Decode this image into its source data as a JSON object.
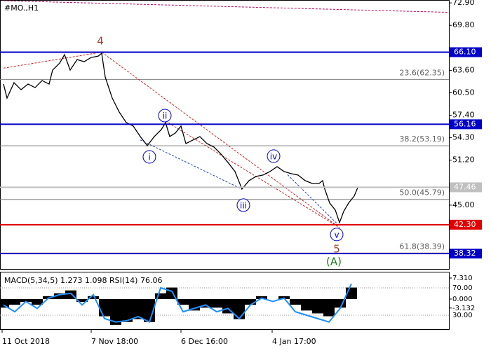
{
  "chart_data": [
    {
      "type": "line",
      "title": "#MO.,H1",
      "color": "#000000",
      "x": [
        5,
        10,
        20,
        30,
        40,
        50,
        60,
        70,
        75,
        85,
        92,
        100,
        110,
        120,
        130,
        140,
        145,
        150,
        160,
        170,
        180,
        190,
        200,
        210,
        220,
        230,
        236,
        242,
        250,
        258,
        265,
        275,
        285,
        295,
        305,
        315,
        325,
        335,
        345,
        355,
        365,
        375,
        385,
        395,
        405,
        415,
        425,
        435,
        445,
        455,
        460,
        463,
        470,
        478,
        484,
        490,
        497,
        505,
        510
      ],
      "values": [
        61.7,
        59.77,
        61.9,
        60.93,
        61.7,
        61.22,
        62.19,
        61.7,
        63.63,
        64.6,
        65.76,
        63.63,
        65.08,
        64.79,
        65.37,
        65.56,
        65.95,
        62.67,
        59.77,
        57.84,
        56.39,
        55.91,
        54.46,
        53.21,
        54.46,
        55.43,
        56.39,
        54.46,
        54.95,
        55.91,
        53.5,
        53.98,
        54.46,
        53.5,
        53.02,
        52.05,
        50.89,
        49.64,
        47.22,
        48.38,
        48.96,
        49.15,
        49.64,
        50.31,
        49.64,
        49.35,
        49.15,
        48.38,
        48.0,
        48.0,
        48.38,
        47.22,
        45.29,
        44.33,
        42.59,
        44.14,
        45.29,
        46.26,
        47.42
      ],
      "xlim": [
        0,
        640
      ],
      "xticks": [
        {
          "value": 3,
          "label": "11 Oct 2018"
        },
        {
          "value": 130,
          "label": "7 Nov 18:00"
        },
        {
          "value": 258,
          "label": "6 Dec 16:00"
        },
        {
          "value": 388,
          "label": "4 Jan 17:00"
        }
      ],
      "ylim": [
        36.1,
        73.3
      ],
      "yticks": [
        {
          "value": 72.9,
          "label": "72.90"
        },
        {
          "value": 69.8,
          "label": "69.80"
        },
        {
          "value": 63.6,
          "label": "63.60"
        },
        {
          "value": 60.5,
          "label": "60.50"
        },
        {
          "value": 57.4,
          "label": "57.40"
        },
        {
          "value": 54.3,
          "label": "54.30"
        },
        {
          "value": 51.2,
          "label": "51.20"
        },
        {
          "value": 45,
          "label": "45.00"
        }
      ],
      "levels": [
        {
          "value": 66.1,
          "label": "66.10",
          "color": "#0000c8"
        },
        {
          "value": 56.16,
          "label": "56.16",
          "color": "#0000c8"
        },
        {
          "value": 47.46,
          "label": "47.46",
          "color": "#c0c0c0"
        },
        {
          "value": 42.3,
          "label": "42.30",
          "color": "#e00000"
        },
        {
          "value": 38.32,
          "label": "38.32",
          "color": "#0000c8"
        }
      ],
      "fib_levels": [
        {
          "value": 62.35,
          "label": "23.6(62.35)"
        },
        {
          "value": 53.19,
          "label": "38.2(53.19)"
        },
        {
          "value": 45.79,
          "label": "50.0(45.79)"
        },
        {
          "value": 38.39,
          "label": "61.8(38.39)"
        }
      ],
      "annotations": [
        {
          "text": "4",
          "x": 143,
          "y": 67.69,
          "color": "#a0402a",
          "circled": false
        },
        {
          "text": "i",
          "x": 213,
          "y": 51.66,
          "color": "#0000c8",
          "circled": true
        },
        {
          "text": "ii",
          "x": 235,
          "y": 57.36,
          "color": "#0000c8",
          "circled": true
        },
        {
          "text": "iii",
          "x": 347,
          "y": 45.0,
          "color": "#0000c8",
          "circled": true
        },
        {
          "text": "iv",
          "x": 390,
          "y": 51.76,
          "color": "#0000c8",
          "circled": true
        },
        {
          "text": "v",
          "x": 480,
          "y": 40.95,
          "color": "#0000c8",
          "circled": true
        },
        {
          "text": "5",
          "x": 480,
          "y": 39.02,
          "color": "#a0402a",
          "circled": false
        },
        {
          "text": "(A)",
          "x": 476,
          "y": 37.28,
          "color": "#1a7a1a",
          "circled": false
        }
      ],
      "trendlines": [
        {
          "x1": 5,
          "y1": 73.2,
          "x2": 640,
          "y2": 71.6,
          "color": "#c00060"
        },
        {
          "x1": 5,
          "y1": 63.9,
          "x2": 145,
          "y2": 66.1,
          "color": "#d02020"
        },
        {
          "x1": 145,
          "y1": 66.1,
          "x2": 484,
          "y2": 41.9,
          "color": "#d02020"
        },
        {
          "x1": 236,
          "y1": 56.6,
          "x2": 484,
          "y2": 41.9,
          "color": "#d02020"
        },
        {
          "x1": 200,
          "y1": 54.0,
          "x2": 345,
          "y2": 47.2,
          "color": "#2040d0"
        },
        {
          "x1": 410,
          "y1": 49.2,
          "x2": 480,
          "y2": 42.5,
          "color": "#2040d0"
        }
      ]
    },
    {
      "type": "macd",
      "title": "MACD(5,34,5) 1.273 1.098 RSI(14) 76.06",
      "x": [
        5,
        21,
        37,
        53,
        69,
        85,
        101,
        117,
        133,
        149,
        165,
        181,
        197,
        213,
        229,
        245,
        261,
        277,
        293,
        309,
        325,
        341,
        357,
        373,
        389,
        405,
        421,
        437,
        453,
        469,
        485,
        501
      ],
      "hist": [
        -3,
        -2,
        -1,
        -2,
        1,
        2,
        3,
        -1,
        1,
        -6,
        -9,
        -8,
        -7,
        -8,
        2,
        4,
        -2,
        -4,
        -3,
        -3,
        -5,
        -7,
        -2,
        1,
        0,
        1,
        -2,
        -4,
        -5,
        -6,
        -3,
        4
      ],
      "hist_color": "#000000",
      "rsi": [
        45,
        35,
        50,
        40,
        55,
        60,
        62,
        45,
        60,
        25,
        20,
        22,
        28,
        20,
        70,
        65,
        35,
        40,
        45,
        35,
        40,
        25,
        45,
        55,
        50,
        55,
        35,
        30,
        25,
        20,
        40,
        76.06
      ],
      "rsi_color": "#1e90ff",
      "xlim": [
        0,
        640
      ],
      "ylim": [
        -10.5,
        9.5
      ],
      "yticks": [
        {
          "value": 7.31,
          "label": "7.310"
        },
        {
          "value": 0,
          "label": "0.000"
        },
        {
          "value": -3.132,
          "label": "-3.132"
        }
      ],
      "y2lim": [
        9.5,
        93.6
      ],
      "y2ticks": [
        {
          "value": 70,
          "label": "70.00"
        },
        {
          "value": 30,
          "label": "30.00"
        }
      ]
    }
  ]
}
